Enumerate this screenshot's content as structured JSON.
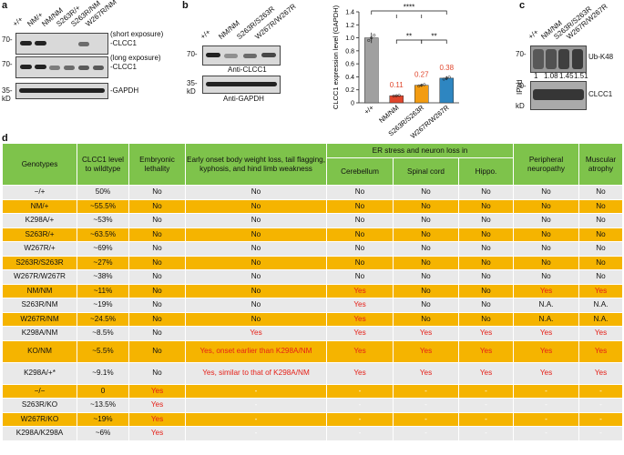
{
  "panel_a": {
    "letter": "a",
    "lanes": [
      "+/+",
      "NM/+",
      "NM/NM",
      "S263R/+",
      "S263R/NM",
      "W267R/NM"
    ],
    "mw": [
      "70-",
      "70-",
      "35-",
      "kD"
    ],
    "labels": [
      "(short exposure)",
      "-CLCC1",
      "(long exposure)",
      "-CLCC1",
      "-GAPDH"
    ]
  },
  "panel_b": {
    "letter": "b",
    "lanes": [
      "+/+",
      "NM/NM",
      "S263R/S263R",
      "W267R/W267R"
    ],
    "mw": [
      "70-",
      "35-",
      "kD"
    ],
    "labels": [
      "Anti-CLCC1",
      "Anti-GAPDH"
    ]
  },
  "panel_c": {
    "letter": "c",
    "lanes": [
      "+/+",
      "NM/NM",
      "S263R/S263R",
      "W267R/W267R"
    ],
    "mw": [
      "70-",
      "70-",
      "kD"
    ],
    "ratios": [
      "1",
      "1.08",
      "1.45",
      "1.51"
    ],
    "labels": [
      "Ub-K48",
      "CLCC1",
      "IPed"
    ]
  },
  "chart_data": {
    "type": "bar",
    "ylabel": "CLCC1 expression level (GAPDH)",
    "ylim": [
      0,
      1.4
    ],
    "yticks": [
      "0",
      "0.2",
      "0.4",
      "0.6",
      "0.8",
      "1.0",
      "1.2",
      "1.4"
    ],
    "categories": [
      "+/+",
      "NM/NM",
      "S263R/S263R",
      "W267R/W267R"
    ],
    "values": [
      1.0,
      0.11,
      0.27,
      0.38
    ],
    "value_labels": [
      "",
      "0.11",
      "0.27",
      "0.38"
    ],
    "colors": [
      "#a0a0a0",
      "#e0462c",
      "#f39c12",
      "#2e86c1"
    ],
    "significance": [
      "****",
      "**",
      "**"
    ]
  },
  "panel_d": {
    "letter": "d",
    "headers": {
      "genotypes": "Genotypes",
      "level": "CLCC1 level to wildtype",
      "lethality": "Embryonic lethality",
      "early": "Early onset body weight loss, tail flagging, kyphosis, and hind limb weakness",
      "er_group": "ER stress and neuron loss in",
      "cerebellum": "Cerebellum",
      "spinal": "Spinal cord",
      "hippo": "Hippo.",
      "peripheral": "Peripheral neuropathy",
      "muscular": "Muscular atrophy"
    },
    "rows": [
      [
        "−/+",
        "50%",
        "No",
        "No",
        "No",
        "No",
        "No",
        "No",
        "No"
      ],
      [
        "NM/+",
        "~55.5%",
        "No",
        "No",
        "No",
        "No",
        "No",
        "No",
        "No"
      ],
      [
        "K298A/+",
        "~53%",
        "No",
        "No",
        "No",
        "No",
        "No",
        "No",
        "No"
      ],
      [
        "S263R/+",
        "~63.5%",
        "No",
        "No",
        "No",
        "No",
        "No",
        "No",
        "No"
      ],
      [
        "W267R/+",
        "~69%",
        "No",
        "No",
        "No",
        "No",
        "No",
        "No",
        "No"
      ],
      [
        "S263R/S263R",
        "~27%",
        "No",
        "No",
        "No",
        "No",
        "No",
        "No",
        "No"
      ],
      [
        "W267R/W267R",
        "~38%",
        "No",
        "No",
        "No",
        "No",
        "No",
        "No",
        "No"
      ],
      [
        "NM/NM",
        "~11%",
        "No",
        "No",
        "Yes",
        "No",
        "No",
        "Yes",
        "Yes"
      ],
      [
        "S263R/NM",
        "~19%",
        "No",
        "No",
        "Yes",
        "No",
        "No",
        "N.A.",
        "N.A."
      ],
      [
        "W267R/NM",
        "~24.5%",
        "No",
        "No",
        "Yes",
        "No",
        "No",
        "N.A.",
        "N.A."
      ],
      [
        "K298A/NM",
        "~8.5%",
        "No",
        "Yes",
        "Yes",
        "Yes",
        "Yes",
        "Yes",
        "Yes"
      ],
      [
        "KO/NM",
        "~5.5%",
        "No",
        "Yes, onset earlier than K298A/NM",
        "Yes",
        "Yes",
        "Yes",
        "Yes",
        "Yes"
      ],
      [
        "K298A/+*",
        "~9.1%",
        "No",
        "Yes, similar to that of K298A/NM",
        "Yes",
        "Yes",
        "Yes",
        "Yes",
        "Yes"
      ],
      [
        "−/−",
        "0",
        "Yes",
        "-",
        "-",
        "-",
        "-",
        "-",
        "-"
      ],
      [
        "S263R/KO",
        "~13.5%",
        "Yes",
        "-",
        "-",
        "-",
        "-",
        "-",
        "-"
      ],
      [
        "W267R/KO",
        "~19%",
        "Yes",
        "-",
        "-",
        "-",
        "-",
        "-",
        "-"
      ],
      [
        "K298A/K298A",
        "~6%",
        "Yes",
        "-",
        "-",
        "-",
        "-",
        "-",
        "-"
      ]
    ]
  }
}
